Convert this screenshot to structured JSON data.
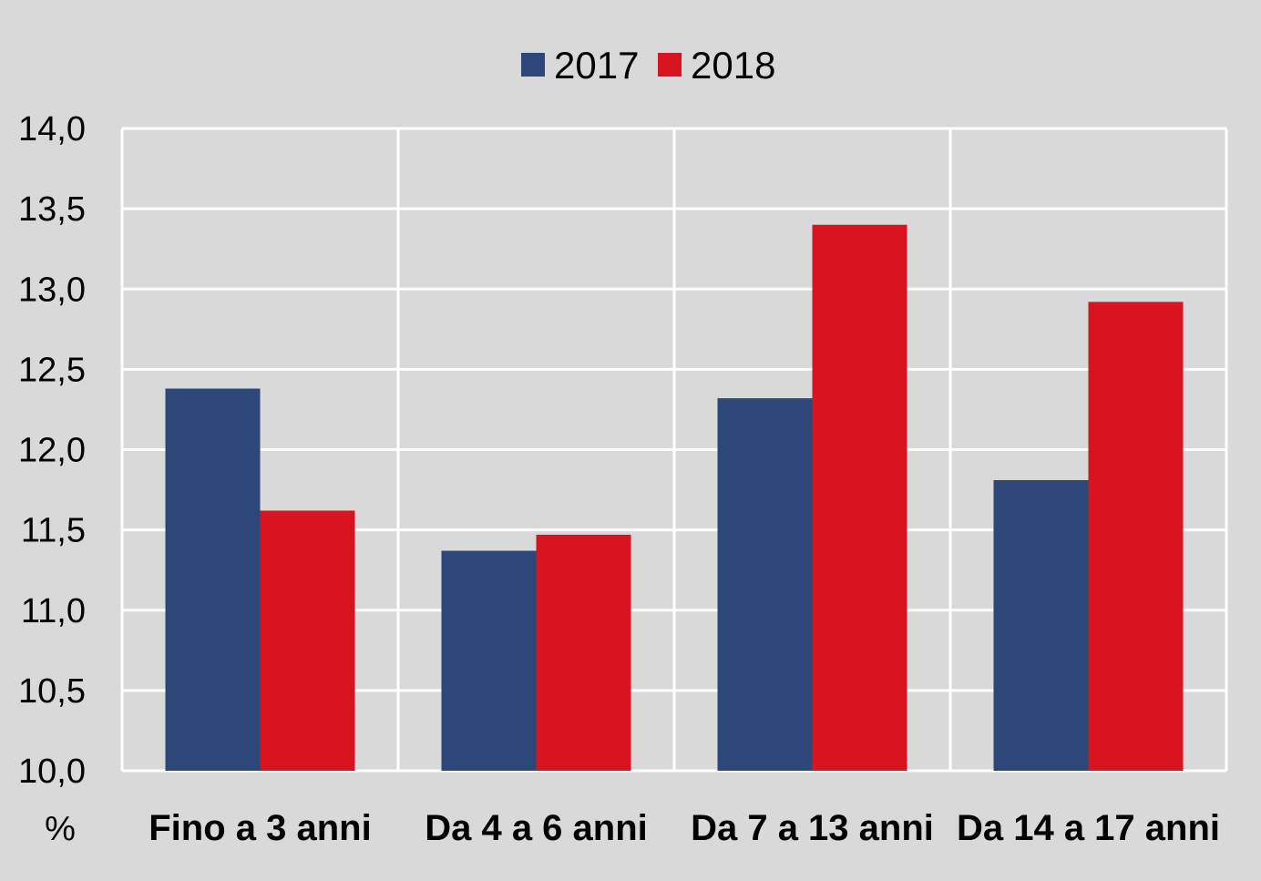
{
  "chart_data": {
    "type": "bar",
    "categories": [
      "Fino a 3 anni",
      "Da 4 a 6 anni",
      "Da 7 a 13 anni",
      "Da 14 a 17 anni"
    ],
    "series": [
      {
        "name": "2017",
        "color": "#2d477b",
        "values": [
          12.38,
          11.37,
          12.32,
          11.81
        ]
      },
      {
        "name": "2018",
        "color": "#d7141f",
        "values": [
          11.62,
          11.47,
          13.4,
          12.92
        ]
      }
    ],
    "ylim": [
      10.0,
      14.0
    ],
    "ytick_labels": [
      "10,0",
      "10,5",
      "11,0",
      "11,5",
      "12,0",
      "12,5",
      "13,0",
      "13,5",
      "14,0"
    ],
    "unit_label": "%",
    "title": "",
    "xlabel": "",
    "ylabel": "",
    "grid": true,
    "legend_position": "top-center",
    "background_color": "#d9d9d9",
    "grid_color": "#ffffff"
  }
}
